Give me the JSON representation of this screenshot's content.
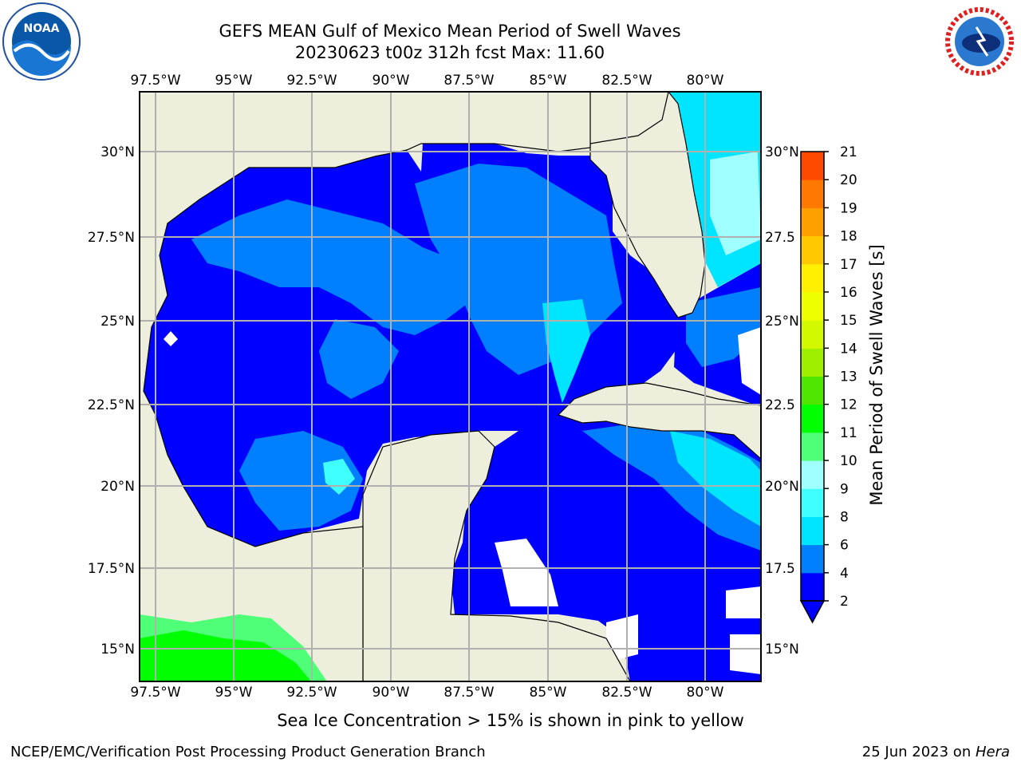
{
  "header": {
    "title_line1": "GEFS MEAN Gulf of Mexico Mean Period of Swell Waves",
    "title_line2": "20230623 t00z 312h fcst   Max: 11.60"
  },
  "logos": {
    "left": "NOAA",
    "right_label": "NATIONAL WEATHER SERVICE"
  },
  "map": {
    "lon_ticks": [
      "97.5°W",
      "95°W",
      "92.5°W",
      "90°W",
      "87.5°W",
      "85°W",
      "82.5°W",
      "80°W"
    ],
    "lat_ticks_left": [
      "30°N",
      "27.5°N",
      "25°N",
      "22.5°N",
      "20°N",
      "17.5°N",
      "15°N"
    ],
    "lat_ticks_right": [
      "30°N",
      "27.5",
      "25°N",
      "22.5",
      "20°N",
      "17.5",
      "15°N"
    ],
    "colors": {
      "land": "#eeeedc",
      "grid": "#b0b0b0",
      "missing": "#ffffff"
    }
  },
  "colorbar": {
    "label": "Mean Period of Swell Waves [s]",
    "ticks": [
      "2",
      "4",
      "6",
      "8",
      "9",
      "10",
      "11",
      "12",
      "13",
      "14",
      "15",
      "16",
      "17",
      "18",
      "19",
      "20",
      "21"
    ],
    "colors": [
      "#0000ff",
      "#0080ff",
      "#00e5ff",
      "#40ffff",
      "#a0ffff",
      "#50ff78",
      "#00ff00",
      "#50e600",
      "#a0ef00",
      "#d4f800",
      "#f0ff00",
      "#ffef00",
      "#ffc800",
      "#ffa000",
      "#ff7800",
      "#ff4800",
      "#ff0000"
    ]
  },
  "footer": {
    "note": "Sea Ice Concentration > 15% is shown in pink to yellow",
    "credit": "NCEP/EMC/Verification Post Processing Product Generation Branch",
    "date": "25 Jun 2023 on ",
    "machine": "Hera"
  }
}
